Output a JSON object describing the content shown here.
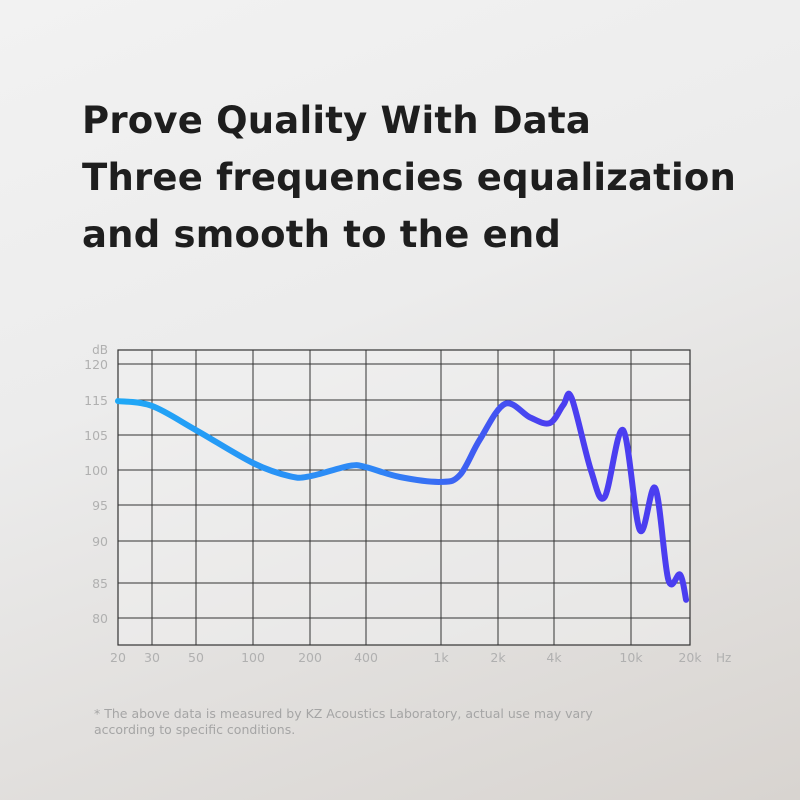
{
  "headline": {
    "lines": [
      "Prove Quality With Data",
      "Three frequencies equalization",
      "and smooth to the end"
    ]
  },
  "chart_data": {
    "type": "line",
    "title": "",
    "xlabel": "Hz",
    "ylabel": "dB",
    "x_scale": "log",
    "grid": true,
    "x_ticks": [
      "20",
      "30",
      "50",
      "100",
      "200",
      "400",
      "1k",
      "2k",
      "4k",
      "10k",
      "20k"
    ],
    "x_tick_values": [
      20,
      30,
      50,
      100,
      200,
      400,
      1000,
      2000,
      4000,
      10000,
      20000
    ],
    "y_ticks": [
      "120",
      "115",
      "105",
      "100",
      "95",
      "90",
      "85",
      "80"
    ],
    "y_tick_values": [
      120,
      115,
      105,
      100,
      95,
      90,
      85,
      80
    ],
    "series": [
      {
        "color_start": "#1fa8f6",
        "color_end": "#4b3ef0",
        "points": [
          [
            20,
            114.7
          ],
          [
            30,
            113.3
          ],
          [
            50,
            106.4
          ],
          [
            100,
            101
          ],
          [
            157,
            99.1
          ],
          [
            200,
            99.1
          ],
          [
            327,
            100.6
          ],
          [
            400,
            100.4
          ],
          [
            605,
            99
          ],
          [
            1000,
            98.3
          ],
          [
            1260,
            99.3
          ],
          [
            1600,
            104.3
          ],
          [
            2180,
            113.9
          ],
          [
            2980,
            110
          ],
          [
            3800,
            108.4
          ],
          [
            4470,
            113.6
          ],
          [
            4930,
            115.3
          ],
          [
            6200,
            100
          ],
          [
            7300,
            96.1
          ],
          [
            9100,
            106.4
          ],
          [
            11100,
            91.5
          ],
          [
            13300,
            97.4
          ],
          [
            15500,
            85.4
          ],
          [
            17800,
            86
          ],
          [
            19100,
            82.6
          ]
        ]
      }
    ]
  },
  "footnote": "* The above data is measured by KZ Acoustics Laboratory, actual use may vary according to specific conditions."
}
